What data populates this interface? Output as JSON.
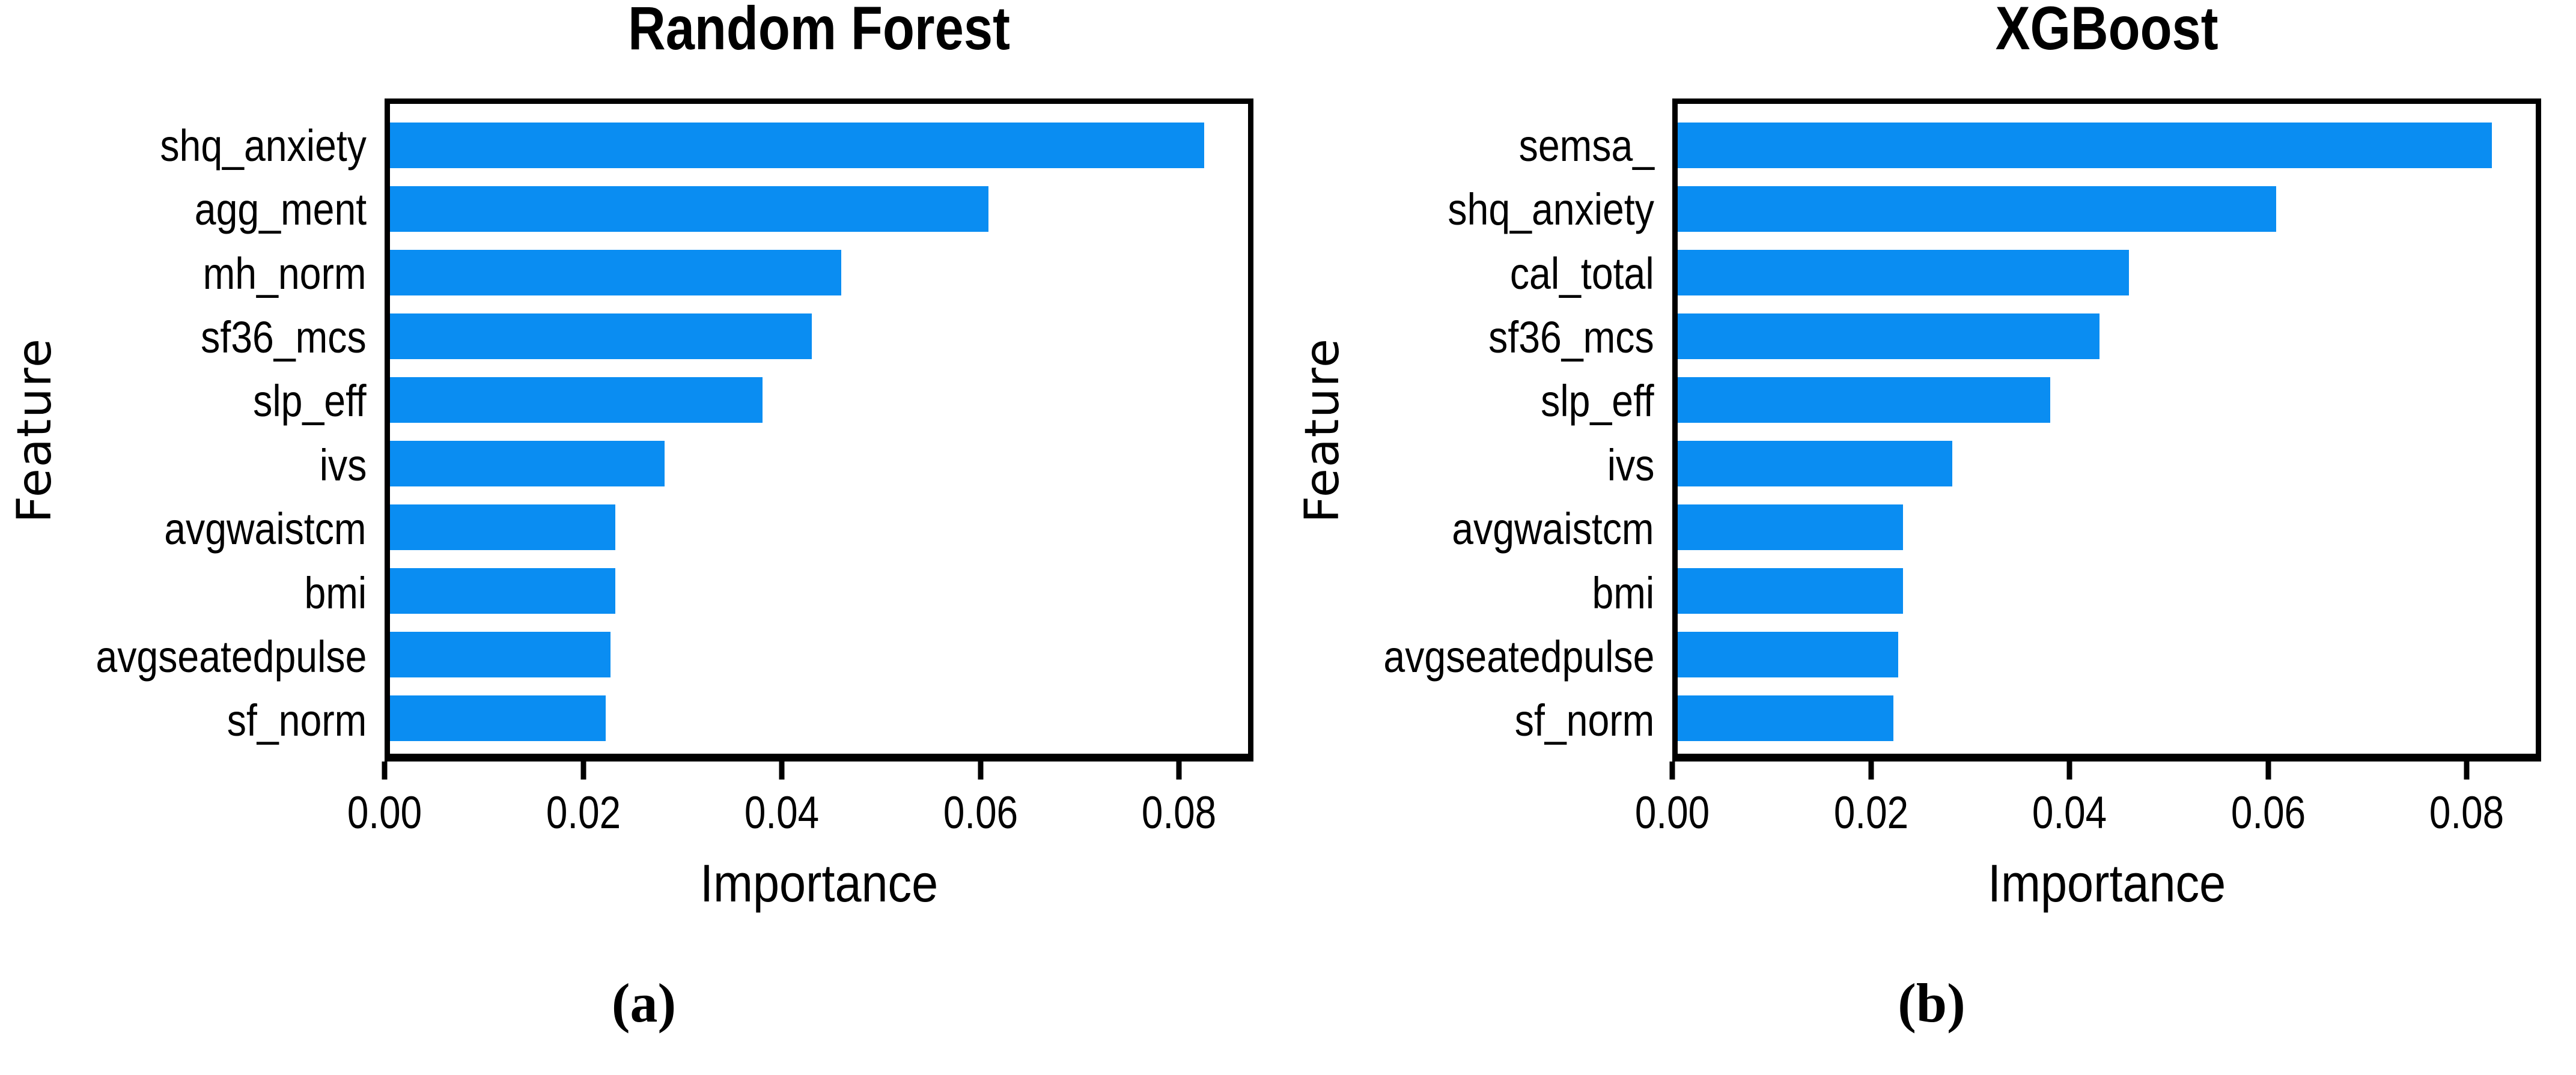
{
  "style": {
    "bar_color": "#0A8DF2",
    "axis_color": "#000000",
    "background": "#FFFFFF",
    "text_color": "#000000"
  },
  "chart_data": [
    {
      "type": "bar",
      "orientation": "horizontal",
      "title": "Random Forest",
      "caption": "(a)",
      "xlabel": "Importance",
      "ylabel": "Feature",
      "categories": [
        "shq_anxiety",
        "agg_ment",
        "mh_norm",
        "sf36_mcs",
        "slp_eff",
        "ivs",
        "avgwaistcm",
        "bmi",
        "avgseatedpulse",
        "sf_norm"
      ],
      "values": [
        0.083,
        0.061,
        0.046,
        0.043,
        0.038,
        0.028,
        0.023,
        0.023,
        0.0225,
        0.022
      ],
      "xlim": [
        0,
        0.0875
      ],
      "x_tick_values": [
        0,
        0.02,
        0.04,
        0.06,
        0.08
      ],
      "x_tick_labels": [
        "0.00",
        "0.02",
        "0.04",
        "0.06",
        "0.08"
      ],
      "grid": false,
      "legend": false
    },
    {
      "type": "bar",
      "orientation": "horizontal",
      "title": "XGBoost",
      "caption": "(b)",
      "xlabel": "Importance",
      "ylabel": "Feature",
      "categories": [
        "semsa_",
        "shq_anxiety",
        "cal_total",
        "sf36_mcs",
        "slp_eff",
        "ivs",
        "avgwaistcm",
        "bmi",
        "avgseatedpulse",
        "sf_norm"
      ],
      "values": [
        0.083,
        0.061,
        0.046,
        0.043,
        0.038,
        0.028,
        0.023,
        0.023,
        0.0225,
        0.022
      ],
      "xlim": [
        0,
        0.0875
      ],
      "x_tick_values": [
        0,
        0.02,
        0.04,
        0.06,
        0.08
      ],
      "x_tick_labels": [
        "0.00",
        "0.02",
        "0.04",
        "0.06",
        "0.08"
      ],
      "grid": false,
      "legend": false
    }
  ]
}
